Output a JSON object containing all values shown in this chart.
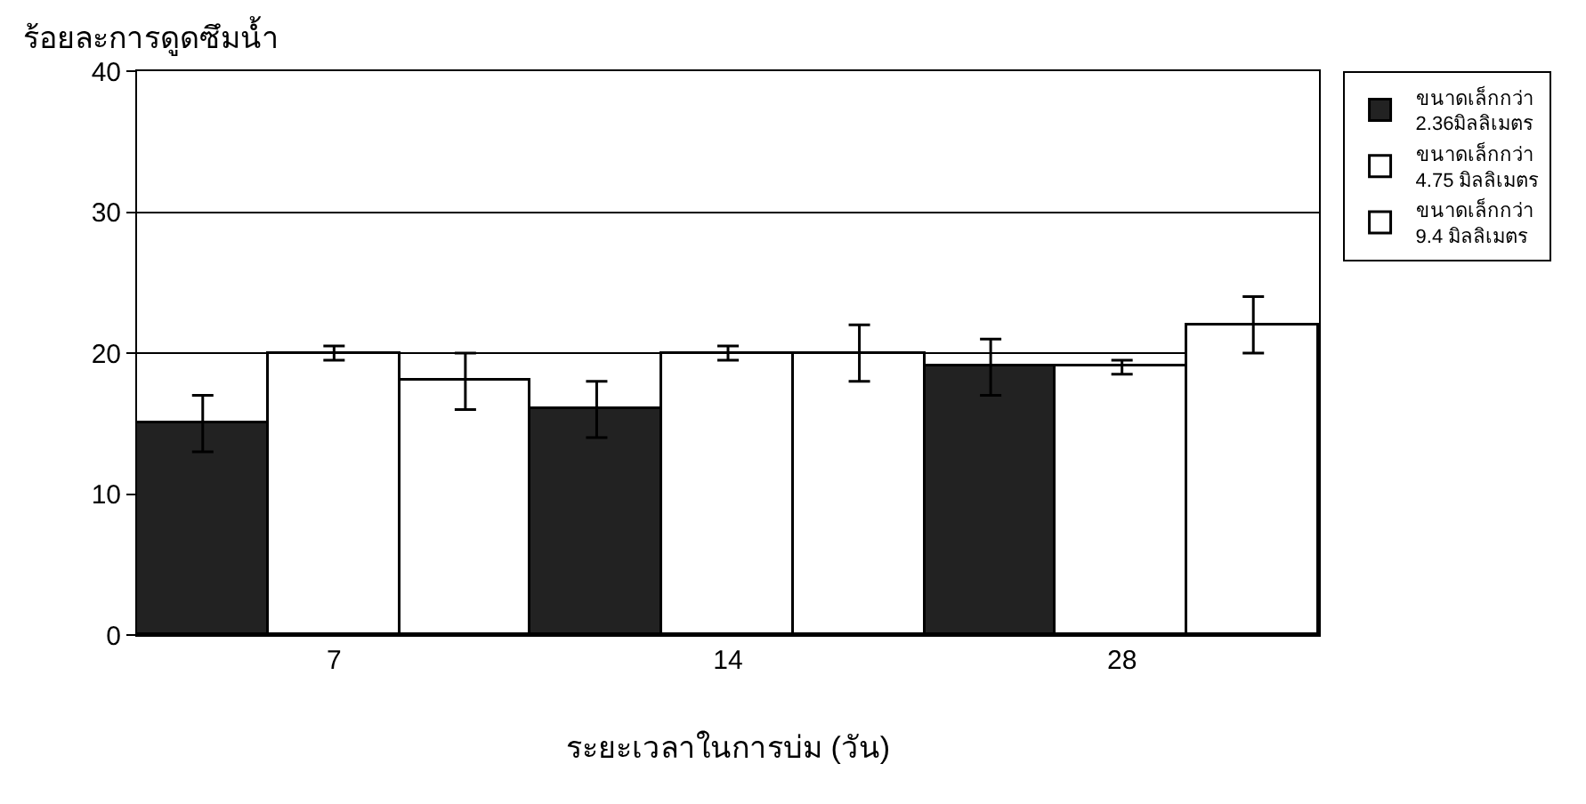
{
  "chart_data": {
    "type": "bar",
    "ylabel": "ร้อยละการดูดซึมน้ำ",
    "xlabel": "ระยะเวลาในการบ่ม (วัน)",
    "categories": [
      "7",
      "14",
      "28"
    ],
    "series": [
      {
        "name": "ขนาดเล็กกว่า\n2.36มิลลิเมตร",
        "color": "#222222",
        "values": [
          15,
          16,
          19
        ],
        "errors": [
          2,
          2,
          2
        ]
      },
      {
        "name": "ขนาดเล็กกว่า\n4.75 มิลลิเมตร",
        "color": "#ffffff",
        "values": [
          20,
          20,
          19
        ],
        "errors": [
          0.5,
          0.5,
          0.5
        ]
      },
      {
        "name": "ขนาดเล็กกว่า\n9.4 มิลลิเมตร",
        "color": "#ffffff",
        "values": [
          18,
          20,
          22
        ],
        "errors": [
          2,
          2,
          2
        ]
      }
    ],
    "ylim": [
      0,
      40
    ],
    "yticks": [
      0,
      10,
      20,
      30,
      40
    ],
    "grid": "y",
    "legend": "right"
  }
}
